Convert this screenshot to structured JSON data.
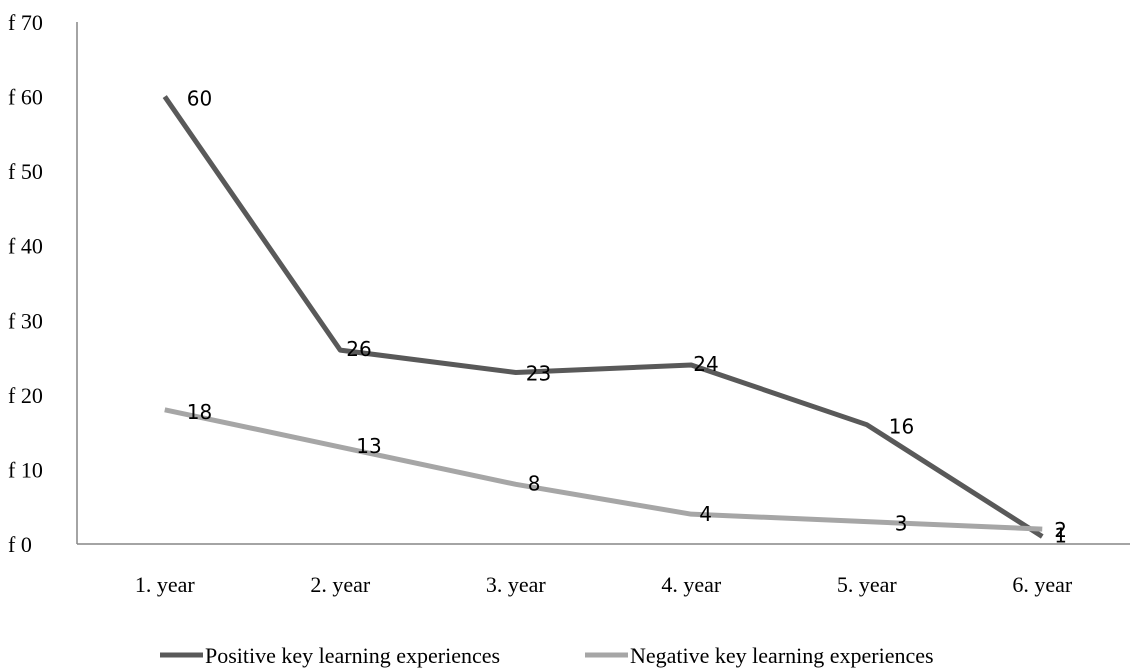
{
  "chart_data": {
    "type": "line",
    "categories": [
      "1. year",
      "2. year",
      "3. year",
      "4. year",
      "5. year",
      "6. year"
    ],
    "y_ticks": [
      "f 0",
      "f 10",
      "f 20",
      "f 30",
      "f 40",
      "f 50",
      "f 60",
      "f 70"
    ],
    "ylim": [
      0,
      70
    ],
    "grid": false,
    "legend_position": "bottom",
    "series": [
      {
        "name": "Positive key learning experiences",
        "values": [
          60,
          26,
          23,
          24,
          16,
          1
        ],
        "labels": [
          "60",
          "26",
          "23",
          "24",
          "16",
          "1"
        ],
        "color": "#595959"
      },
      {
        "name": "Negative key learning experiences",
        "values": [
          18,
          13,
          8,
          4,
          3,
          2
        ],
        "labels": [
          "18",
          "13",
          "8",
          "4",
          "3",
          "2"
        ],
        "color": "#a6a6a6"
      }
    ]
  }
}
